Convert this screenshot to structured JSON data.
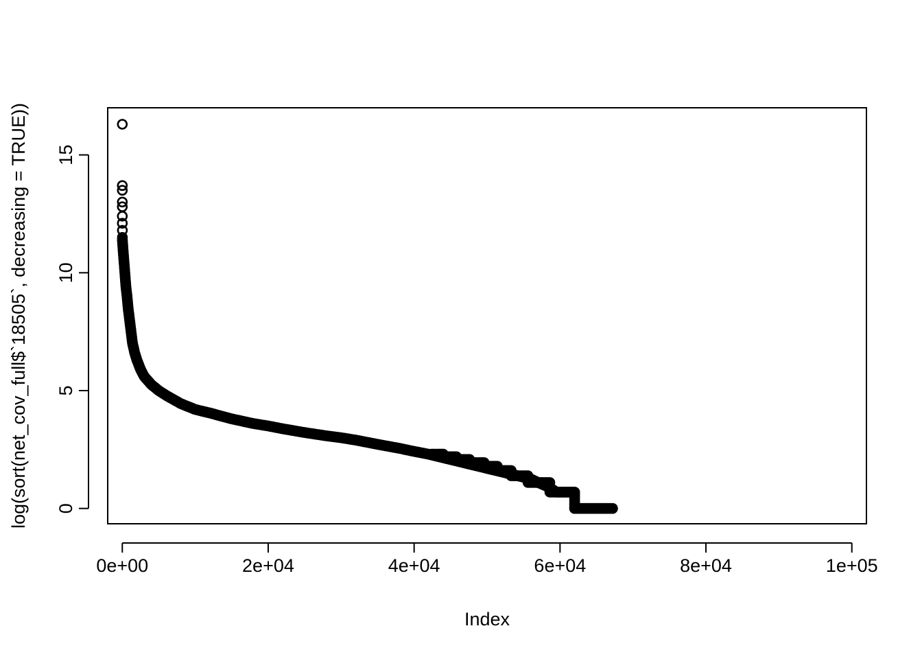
{
  "chart_data": {
    "type": "scatter",
    "title": "",
    "xlabel": "Index",
    "ylabel": "log(sort(net_cov_full$`18505`, decreasing = TRUE))",
    "xlim": [
      -2000,
      102000
    ],
    "ylim": [
      -0.65,
      17
    ],
    "x_ticks": [
      0,
      20000,
      40000,
      60000,
      80000,
      100000
    ],
    "x_tick_labels": [
      "0e+00",
      "2e+04",
      "4e+04",
      "6e+04",
      "8e+04",
      "1e+05"
    ],
    "y_ticks": [
      0,
      5,
      10,
      15
    ],
    "y_tick_labels": [
      "0",
      "5",
      "10",
      "15"
    ],
    "grid": false,
    "marker": "open-circle",
    "series_color": "#000000",
    "outliers": [
      {
        "x": 1,
        "y": 16.3
      },
      {
        "x": 2,
        "y": 13.7
      },
      {
        "x": 3,
        "y": 13.5
      },
      {
        "x": 4,
        "y": 13.0
      },
      {
        "x": 5,
        "y": 12.8
      },
      {
        "x": 6,
        "y": 12.4
      },
      {
        "x": 7,
        "y": 12.1
      },
      {
        "x": 8,
        "y": 11.8
      },
      {
        "x": 10,
        "y": 11.5
      }
    ],
    "curve": [
      [
        10,
        11.4
      ],
      [
        100,
        11.0
      ],
      [
        200,
        10.6
      ],
      [
        300,
        10.2
      ],
      [
        400,
        9.8
      ],
      [
        500,
        9.4
      ],
      [
        650,
        9.0
      ],
      [
        800,
        8.5
      ],
      [
        1000,
        8.0
      ],
      [
        1200,
        7.5
      ],
      [
        1400,
        7.0
      ],
      [
        1700,
        6.6
      ],
      [
        2000,
        6.3
      ],
      [
        2500,
        5.9
      ],
      [
        3000,
        5.6
      ],
      [
        4000,
        5.25
      ],
      [
        5000,
        5.0
      ],
      [
        6000,
        4.8
      ],
      [
        8000,
        4.45
      ],
      [
        10000,
        4.2
      ],
      [
        12000,
        4.05
      ],
      [
        15000,
        3.8
      ],
      [
        18000,
        3.6
      ],
      [
        20000,
        3.5
      ],
      [
        22000,
        3.38
      ],
      [
        25000,
        3.22
      ],
      [
        28000,
        3.08
      ],
      [
        30000,
        3.0
      ],
      [
        32000,
        2.9
      ],
      [
        35000,
        2.72
      ],
      [
        38000,
        2.55
      ],
      [
        40000,
        2.42
      ],
      [
        42000,
        2.3
      ],
      [
        44000,
        2.15
      ],
      [
        46000,
        2.0
      ],
      [
        48000,
        1.85
      ],
      [
        50000,
        1.7
      ],
      [
        52000,
        1.55
      ],
      [
        54000,
        1.4
      ],
      [
        56000,
        1.25
      ],
      [
        57000,
        1.1
      ],
      [
        58500,
        0.9
      ],
      [
        59500,
        0.693
      ],
      [
        62000,
        0.693
      ],
      [
        62000,
        0.0
      ],
      [
        67200,
        0.0
      ]
    ],
    "levels": [
      {
        "y": 0.0,
        "x_from": 62000,
        "x_to": 67200
      },
      {
        "y": 0.693,
        "x_from": 58600,
        "x_to": 62000
      },
      {
        "y": 1.099,
        "x_from": 55600,
        "x_to": 58600
      },
      {
        "y": 1.386,
        "x_from": 53300,
        "x_to": 55600
      },
      {
        "y": 1.609,
        "x_from": 51400,
        "x_to": 53300
      },
      {
        "y": 1.792,
        "x_from": 49600,
        "x_to": 51400
      },
      {
        "y": 1.946,
        "x_from": 47600,
        "x_to": 49600
      },
      {
        "y": 2.079,
        "x_from": 45800,
        "x_to": 47600
      },
      {
        "y": 2.197,
        "x_from": 44000,
        "x_to": 45800
      },
      {
        "y": 2.303,
        "x_from": 42400,
        "x_to": 44000
      }
    ]
  }
}
